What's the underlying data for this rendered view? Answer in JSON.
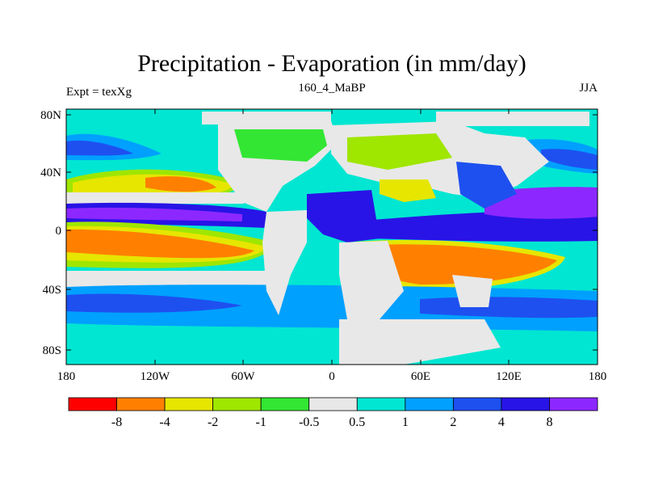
{
  "title": "Precipitation - Evaporation (in mm/day)",
  "left_label": "Expt = texXg",
  "center_label": "160_4_MaBP",
  "right_label": "JJA",
  "lat_ticks": [
    "80N",
    "40N",
    "0",
    "40S",
    "80S"
  ],
  "lon_ticks": [
    "180",
    "120W",
    "60W",
    "0",
    "60E",
    "120E",
    "180"
  ],
  "colorbar": {
    "colors": [
      "#ff0000",
      "#ff8000",
      "#e6e600",
      "#9fe600",
      "#33e633",
      "#e8e8e8",
      "#00e6d2",
      "#00a0ff",
      "#1e50f0",
      "#2814e6",
      "#8c28ff"
    ],
    "labels": [
      "-8",
      "-4",
      "-2",
      "-1",
      "-0.5",
      "0.5",
      "1",
      "2",
      "4",
      "8"
    ]
  }
}
